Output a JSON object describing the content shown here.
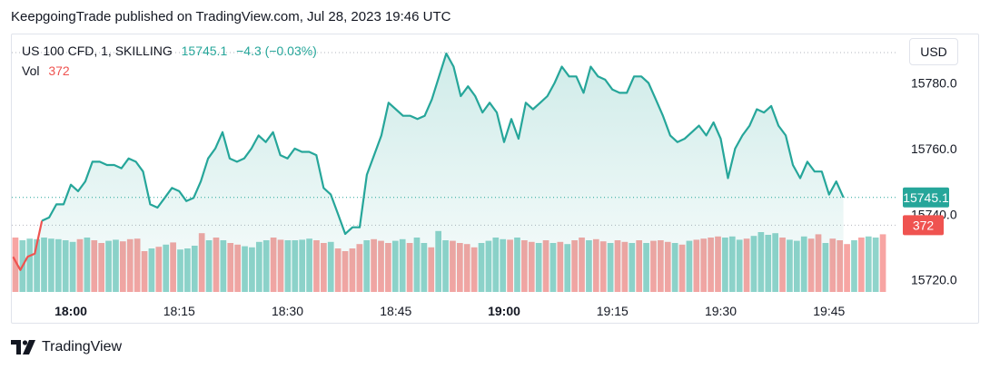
{
  "header": {
    "published": "KeepgoingTrade published on TradingView.com, Jul 28, 2023 19:46 UTC"
  },
  "legend": {
    "symbol": "US 100 CFD, 1, SKILLING",
    "price": "15745.1",
    "change": "−4.3 (−0.03%)",
    "vol_label": "Vol",
    "vol_value": "372"
  },
  "currency_button": "USD",
  "footer": {
    "brand": "TradingView"
  },
  "colors": {
    "up": "#26a69a",
    "down": "#ef5350",
    "vol_up": "#90d4cb",
    "vol_down": "#f7a5a3"
  },
  "chart_data": {
    "type": "area",
    "title": "US 100 CFD, 1, SKILLING",
    "x_ticks": [
      {
        "t": 0,
        "label": "18:00",
        "bold": true
      },
      {
        "t": 15,
        "label": "18:15",
        "bold": false
      },
      {
        "t": 30,
        "label": "18:30",
        "bold": false
      },
      {
        "t": 45,
        "label": "18:45",
        "bold": false
      },
      {
        "t": 60,
        "label": "19:00",
        "bold": true
      },
      {
        "t": 75,
        "label": "19:15",
        "bold": false
      },
      {
        "t": 90,
        "label": "19:30",
        "bold": false
      },
      {
        "t": 105,
        "label": "19:45",
        "bold": false
      }
    ],
    "y_ticks": [
      15720.0,
      15740.0,
      15760.0,
      15780.0
    ],
    "y_tick_labels": [
      "15720.0",
      "15740.0",
      "15760.0",
      "15780.0"
    ],
    "ylim": [
      15716.3,
      15794.8
    ],
    "last_price": 15745.1,
    "last_price_label": "15745.1",
    "last_volume_label": "372",
    "price_series": [
      [
        -8,
        15727
      ],
      [
        -7,
        15723
      ],
      [
        -6,
        15727
      ],
      [
        -5,
        15728
      ],
      [
        -4,
        15738
      ],
      [
        -3,
        15739
      ],
      [
        -2,
        15743
      ],
      [
        -1,
        15743
      ],
      [
        0,
        15749
      ],
      [
        1,
        15747
      ],
      [
        2,
        15750
      ],
      [
        3,
        15756
      ],
      [
        4,
        15756
      ],
      [
        5,
        15755
      ],
      [
        6,
        15755
      ],
      [
        7,
        15754
      ],
      [
        8,
        15757
      ],
      [
        9,
        15756
      ],
      [
        10,
        15753
      ],
      [
        11,
        15743
      ],
      [
        12,
        15742
      ],
      [
        13,
        15745
      ],
      [
        14,
        15748
      ],
      [
        15,
        15747
      ],
      [
        16,
        15744
      ],
      [
        17,
        15745
      ],
      [
        18,
        15750
      ],
      [
        19,
        15757
      ],
      [
        20,
        15760
      ],
      [
        21,
        15765
      ],
      [
        22,
        15757
      ],
      [
        23,
        15756
      ],
      [
        24,
        15757
      ],
      [
        25,
        15760
      ],
      [
        26,
        15764
      ],
      [
        27,
        15762
      ],
      [
        28,
        15765
      ],
      [
        29,
        15758
      ],
      [
        30,
        15757
      ],
      [
        31,
        15760
      ],
      [
        32,
        15759
      ],
      [
        33,
        15759
      ],
      [
        34,
        15758
      ],
      [
        35,
        15748
      ],
      [
        36,
        15746
      ],
      [
        37,
        15740
      ],
      [
        38,
        15734
      ],
      [
        39,
        15736
      ],
      [
        40,
        15736
      ],
      [
        41,
        15752
      ],
      [
        42,
        15758
      ],
      [
        43,
        15764
      ],
      [
        44,
        15774
      ],
      [
        45,
        15772
      ],
      [
        46,
        15770
      ],
      [
        47,
        15770
      ],
      [
        48,
        15769
      ],
      [
        49,
        15770
      ],
      [
        50,
        15775
      ],
      [
        51,
        15782
      ],
      [
        52,
        15789
      ],
      [
        53,
        15785
      ],
      [
        54,
        15776
      ],
      [
        55,
        15779
      ],
      [
        56,
        15776
      ],
      [
        57,
        15771
      ],
      [
        58,
        15774
      ],
      [
        59,
        15771
      ],
      [
        60,
        15762
      ],
      [
        61,
        15769
      ],
      [
        62,
        15763
      ],
      [
        63,
        15774
      ],
      [
        64,
        15772
      ],
      [
        65,
        15774
      ],
      [
        66,
        15776
      ],
      [
        67,
        15780
      ],
      [
        68,
        15785
      ],
      [
        69,
        15782
      ],
      [
        70,
        15782
      ],
      [
        71,
        15777
      ],
      [
        72,
        15785
      ],
      [
        73,
        15782
      ],
      [
        74,
        15781
      ],
      [
        75,
        15778
      ],
      [
        76,
        15777
      ],
      [
        77,
        15777
      ],
      [
        78,
        15782
      ],
      [
        79,
        15782
      ],
      [
        80,
        15780
      ],
      [
        81,
        15775
      ],
      [
        82,
        15770
      ],
      [
        83,
        15764
      ],
      [
        84,
        15762
      ],
      [
        85,
        15763
      ],
      [
        86,
        15765
      ],
      [
        87,
        15767
      ],
      [
        88,
        15764
      ],
      [
        89,
        15768
      ],
      [
        90,
        15763
      ],
      [
        91,
        15751
      ],
      [
        92,
        15760
      ],
      [
        93,
        15764
      ],
      [
        94,
        15767
      ],
      [
        95,
        15772
      ],
      [
        96,
        15771
      ],
      [
        97,
        15773
      ],
      [
        98,
        15767
      ],
      [
        99,
        15764
      ],
      [
        100,
        15755
      ],
      [
        101,
        15751
      ],
      [
        102,
        15756
      ],
      [
        103,
        15753
      ],
      [
        104,
        15753
      ],
      [
        105,
        15746
      ],
      [
        106,
        15750
      ],
      [
        107,
        15745.1
      ]
    ],
    "volume_series": [
      {
        "v": 1.0,
        "up": false
      },
      {
        "v": 0.95,
        "up": true
      },
      {
        "v": 0.98,
        "up": true
      },
      {
        "v": 0.97,
        "up": true
      },
      {
        "v": 1.0,
        "up": true
      },
      {
        "v": 0.98,
        "up": true
      },
      {
        "v": 0.97,
        "up": true
      },
      {
        "v": 0.95,
        "up": true
      },
      {
        "v": 0.92,
        "up": true
      },
      {
        "v": 0.97,
        "up": false
      },
      {
        "v": 1.0,
        "up": true
      },
      {
        "v": 0.95,
        "up": false
      },
      {
        "v": 0.9,
        "up": false
      },
      {
        "v": 0.94,
        "up": true
      },
      {
        "v": 0.96,
        "up": true
      },
      {
        "v": 0.93,
        "up": false
      },
      {
        "v": 0.97,
        "up": false
      },
      {
        "v": 0.98,
        "up": false
      },
      {
        "v": 0.75,
        "up": false
      },
      {
        "v": 0.8,
        "up": true
      },
      {
        "v": 0.83,
        "up": false
      },
      {
        "v": 0.87,
        "up": true
      },
      {
        "v": 0.91,
        "up": false
      },
      {
        "v": 0.78,
        "up": true
      },
      {
        "v": 0.8,
        "up": true
      },
      {
        "v": 0.85,
        "up": true
      },
      {
        "v": 1.08,
        "up": false
      },
      {
        "v": 0.95,
        "up": true
      },
      {
        "v": 1.0,
        "up": false
      },
      {
        "v": 0.95,
        "up": true
      },
      {
        "v": 0.9,
        "up": false
      },
      {
        "v": 0.87,
        "up": false
      },
      {
        "v": 0.84,
        "up": true
      },
      {
        "v": 0.82,
        "up": true
      },
      {
        "v": 0.92,
        "up": true
      },
      {
        "v": 0.95,
        "up": true
      },
      {
        "v": 1.0,
        "up": false
      },
      {
        "v": 0.96,
        "up": false
      },
      {
        "v": 0.95,
        "up": true
      },
      {
        "v": 0.95,
        "up": true
      },
      {
        "v": 0.96,
        "up": true
      },
      {
        "v": 0.98,
        "up": true
      },
      {
        "v": 0.95,
        "up": false
      },
      {
        "v": 0.9,
        "up": false
      },
      {
        "v": 0.92,
        "up": true
      },
      {
        "v": 0.8,
        "up": false
      },
      {
        "v": 0.75,
        "up": false
      },
      {
        "v": 0.8,
        "up": false
      },
      {
        "v": 0.88,
        "up": false
      },
      {
        "v": 0.95,
        "up": true
      },
      {
        "v": 0.97,
        "up": false
      },
      {
        "v": 0.94,
        "up": false
      },
      {
        "v": 0.9,
        "up": false
      },
      {
        "v": 0.94,
        "up": true
      },
      {
        "v": 0.97,
        "up": true
      },
      {
        "v": 0.9,
        "up": false
      },
      {
        "v": 1.0,
        "up": true
      },
      {
        "v": 0.9,
        "up": true
      },
      {
        "v": 0.82,
        "up": false
      },
      {
        "v": 1.12,
        "up": true
      },
      {
        "v": 0.95,
        "up": true
      },
      {
        "v": 0.94,
        "up": false
      },
      {
        "v": 0.9,
        "up": false
      },
      {
        "v": 0.88,
        "up": false
      },
      {
        "v": 0.82,
        "up": false
      },
      {
        "v": 0.9,
        "up": true
      },
      {
        "v": 0.94,
        "up": true
      },
      {
        "v": 1.0,
        "up": true
      },
      {
        "v": 0.97,
        "up": true
      },
      {
        "v": 0.96,
        "up": false
      },
      {
        "v": 1.0,
        "up": true
      },
      {
        "v": 0.95,
        "up": false
      },
      {
        "v": 0.92,
        "up": false
      },
      {
        "v": 0.9,
        "up": true
      },
      {
        "v": 0.95,
        "up": false
      },
      {
        "v": 0.9,
        "up": true
      },
      {
        "v": 0.92,
        "up": false
      },
      {
        "v": 0.88,
        "up": true
      },
      {
        "v": 0.95,
        "up": false
      },
      {
        "v": 1.0,
        "up": false
      },
      {
        "v": 0.95,
        "up": true
      },
      {
        "v": 0.97,
        "up": false
      },
      {
        "v": 0.93,
        "up": false
      },
      {
        "v": 0.9,
        "up": true
      },
      {
        "v": 0.95,
        "up": false
      },
      {
        "v": 0.92,
        "up": false
      },
      {
        "v": 0.9,
        "up": true
      },
      {
        "v": 0.95,
        "up": false
      },
      {
        "v": 0.9,
        "up": true
      },
      {
        "v": 0.94,
        "up": false
      },
      {
        "v": 0.95,
        "up": false
      },
      {
        "v": 0.92,
        "up": false
      },
      {
        "v": 0.9,
        "up": true
      },
      {
        "v": 0.87,
        "up": false
      },
      {
        "v": 0.94,
        "up": true
      },
      {
        "v": 0.96,
        "up": false
      },
      {
        "v": 0.98,
        "up": false
      },
      {
        "v": 1.0,
        "up": false
      },
      {
        "v": 1.02,
        "up": false
      },
      {
        "v": 1.0,
        "up": true
      },
      {
        "v": 1.02,
        "up": true
      },
      {
        "v": 0.96,
        "up": true
      },
      {
        "v": 0.98,
        "up": false
      },
      {
        "v": 1.03,
        "up": true
      },
      {
        "v": 1.1,
        "up": true
      },
      {
        "v": 1.05,
        "up": true
      },
      {
        "v": 1.08,
        "up": true
      },
      {
        "v": 1.0,
        "up": false
      },
      {
        "v": 0.96,
        "up": true
      },
      {
        "v": 0.94,
        "up": true
      },
      {
        "v": 1.02,
        "up": true
      },
      {
        "v": 0.98,
        "up": false
      },
      {
        "v": 1.06,
        "up": false
      },
      {
        "v": 0.9,
        "up": true
      },
      {
        "v": 0.98,
        "up": false
      },
      {
        "v": 0.95,
        "up": false
      },
      {
        "v": 0.88,
        "up": false
      },
      {
        "v": 0.95,
        "up": true
      },
      {
        "v": 1.0,
        "up": false
      },
      {
        "v": 1.02,
        "up": true
      },
      {
        "v": 1.0,
        "up": true
      },
      {
        "v": 1.06,
        "up": false
      }
    ]
  }
}
